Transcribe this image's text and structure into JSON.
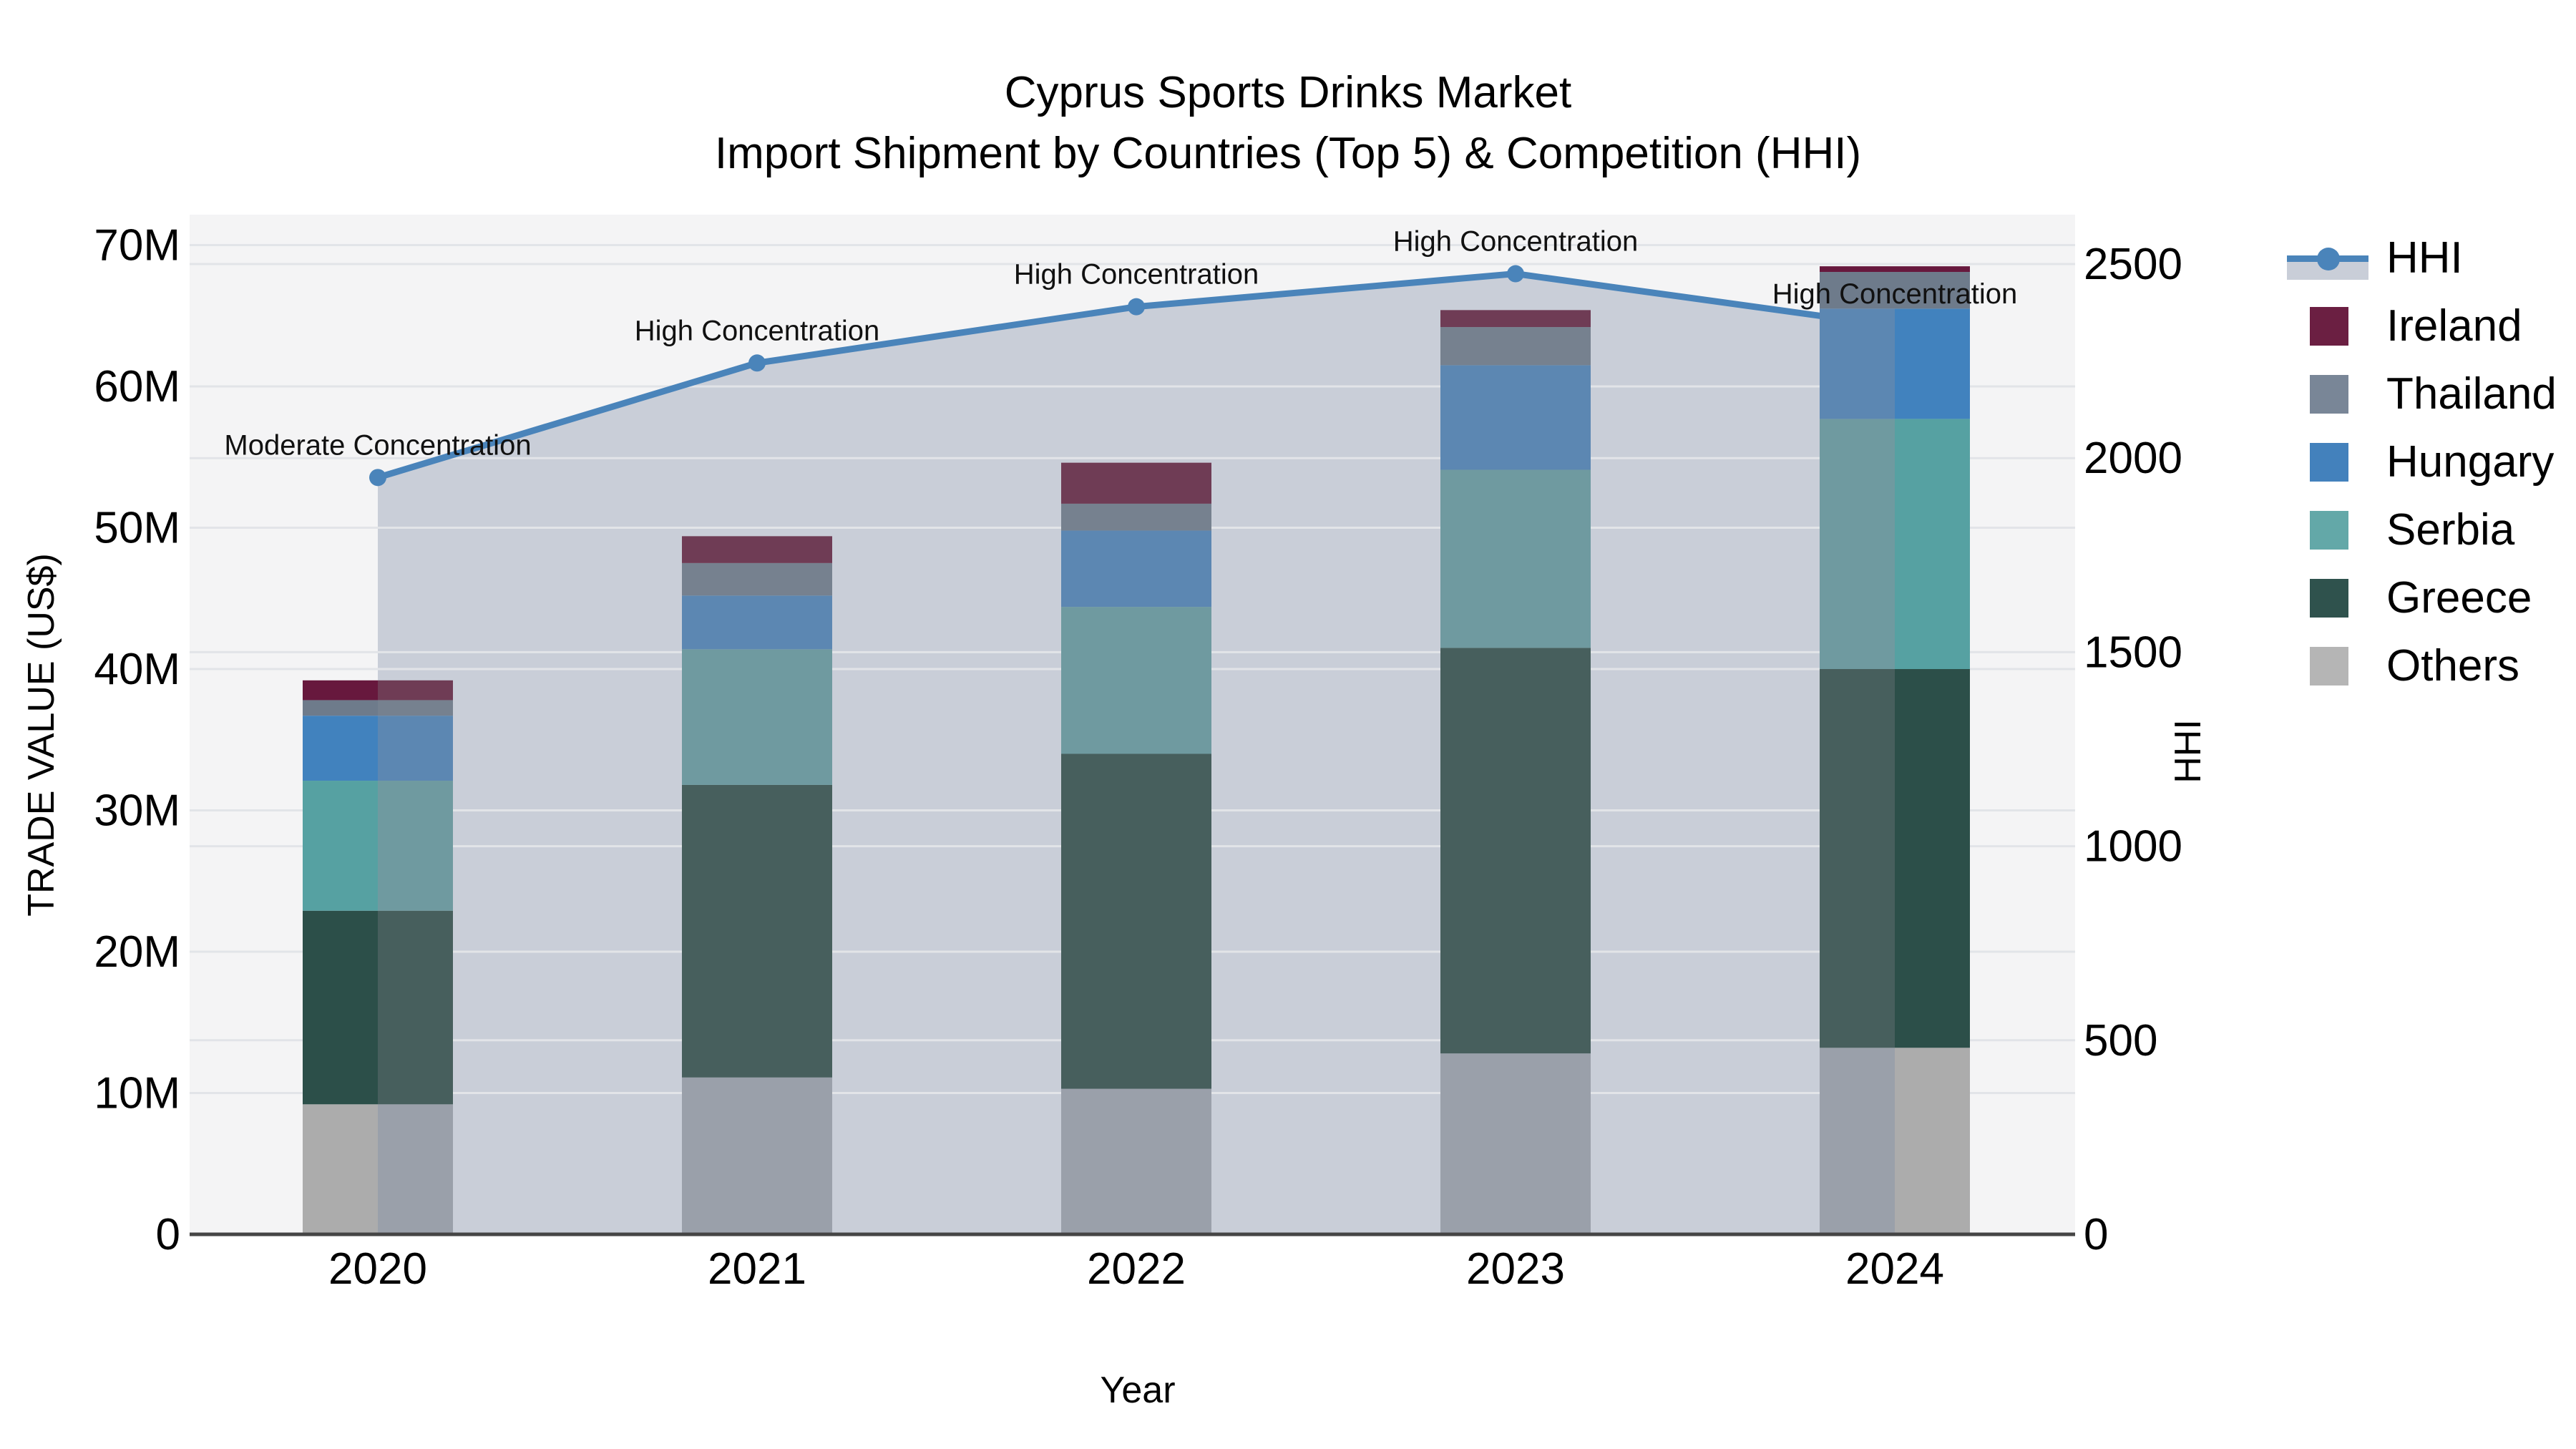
{
  "title": {
    "line1": "Cyprus Sports Drinks Market",
    "line2": "Import Shipment by Countries (Top 5) & Competition (HHI)"
  },
  "axes": {
    "x": {
      "label": "Year",
      "categories": [
        "2020",
        "2021",
        "2022",
        "2023",
        "2024"
      ]
    },
    "y_left": {
      "label": "TRADE VALUE (US$)",
      "tick_labels": [
        "0",
        "10M",
        "20M",
        "30M",
        "40M",
        "50M",
        "60M",
        "70M"
      ],
      "min": 0,
      "max": 70000000
    },
    "y_right": {
      "label": "HHI",
      "tick_labels": [
        "0",
        "500",
        "1000",
        "1500",
        "2000",
        "2500"
      ],
      "min": 0,
      "max": 2500
    }
  },
  "legend": {
    "items": [
      "HHI",
      "Ireland",
      "Thailand",
      "Hungary",
      "Serbia",
      "Greece",
      "Others"
    ]
  },
  "chart_data": {
    "type": "combo",
    "subtype": "stacked-bar + line-with-area",
    "title": "Cyprus Sports Drinks Market — Import Shipment by Countries (Top 5) & Competition (HHI)",
    "xlabel": "Year",
    "ylabel_left": "TRADE VALUE (US$)",
    "ylabel_right": "HHI",
    "categories": [
      "2020",
      "2021",
      "2022",
      "2023",
      "2024"
    ],
    "bar_unit": "US$ millions",
    "bar_stack_order_bottom_to_top": [
      "Others",
      "Greece",
      "Serbia",
      "Hungary",
      "Thailand",
      "Ireland"
    ],
    "series": [
      {
        "name": "Ireland",
        "type": "bar",
        "values": [
          1.4,
          1.9,
          2.9,
          1.2,
          0.4
        ]
      },
      {
        "name": "Thailand",
        "type": "bar",
        "values": [
          1.1,
          2.3,
          1.9,
          2.7,
          2.6
        ]
      },
      {
        "name": "Hungary",
        "type": "bar",
        "values": [
          4.6,
          3.8,
          5.4,
          7.4,
          7.8
        ]
      },
      {
        "name": "Serbia",
        "type": "bar",
        "values": [
          9.2,
          9.6,
          10.4,
          12.6,
          17.7
        ]
      },
      {
        "name": "Greece",
        "type": "bar",
        "values": [
          13.7,
          20.7,
          23.7,
          28.7,
          26.8
        ]
      },
      {
        "name": "Others",
        "type": "bar",
        "values": [
          9.2,
          11.1,
          10.3,
          12.8,
          13.2
        ]
      }
    ],
    "bar_totals_millions": [
      39.2,
      49.4,
      54.6,
      65.4,
      68.5
    ],
    "line_series": {
      "name": "HHI",
      "axis": "right",
      "values": [
        1950,
        2245,
        2390,
        2475,
        2340
      ],
      "area_fill": true
    },
    "annotations": [
      {
        "x": "2020",
        "text": "Moderate Concentration"
      },
      {
        "x": "2021",
        "text": "High Concentration"
      },
      {
        "x": "2022",
        "text": "High Concentration"
      },
      {
        "x": "2023",
        "text": "High Concentration"
      },
      {
        "x": "2024",
        "text": "High Concentration"
      }
    ],
    "ylim_left": [
      0,
      70000000
    ],
    "ylim_right": [
      0,
      2500
    ],
    "grid": true,
    "legend_position": "right"
  },
  "colors": {
    "hhi_line": "#4a84ba",
    "hhi_area": "#c9ced8",
    "plot_bg": "#f4f4f5",
    "grid": "#e2e4e8",
    "axis_line": "#454545",
    "text": "#000000",
    "series": {
      "Ireland": "#67183d",
      "Thailand": "#6e7b8b",
      "Hungary": "#4182be",
      "Serbia": "#56a1a2",
      "Greece": "#2c4f49",
      "Others": "#acacac"
    },
    "series_muted": {
      "Ireland": "#6f3c55",
      "Thailand": "#76818f",
      "Hungary": "#5c87b2",
      "Serbia": "#6f9aa0",
      "Greece": "#475f5d",
      "Others": "#9aa0aa"
    },
    "legend_swatch": {
      "Ireland": "#6b1f42",
      "Thailand": "#798697",
      "Hungary": "#4381bc",
      "Serbia": "#63a8a8",
      "Greece": "#2f524d",
      "Others": "#b5b5b5"
    }
  }
}
